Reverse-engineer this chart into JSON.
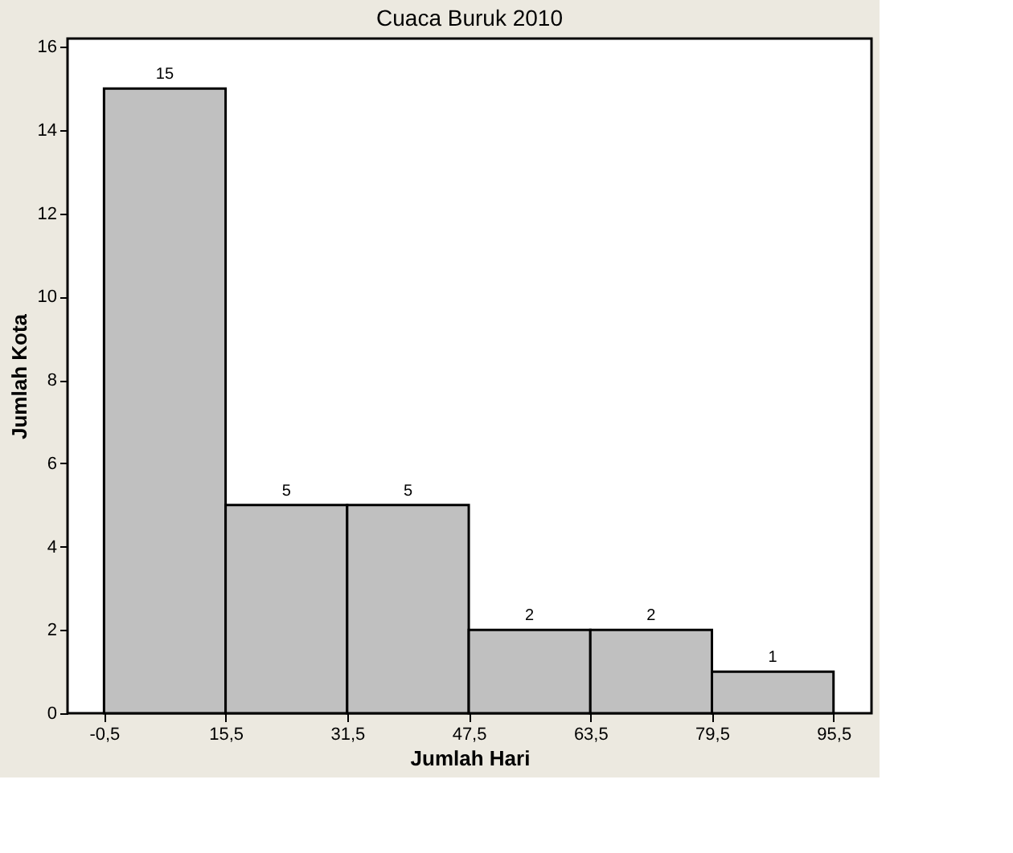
{
  "chart_data": {
    "type": "histogram",
    "title": "Cuaca Buruk 2010",
    "xlabel": "Jumlah Hari",
    "ylabel": "Jumlah Kota",
    "bins": [
      -0.5,
      15.5,
      31.5,
      47.5,
      63.5,
      79.5,
      95.5
    ],
    "values": [
      15,
      5,
      5,
      2,
      2,
      1
    ],
    "color": "#c0c0c0",
    "xlim": [
      -5.3,
      100.5
    ],
    "ylim": [
      0,
      16.2
    ],
    "xticks": [
      {
        "value": -0.5,
        "label": "-0,5"
      },
      {
        "value": 15.5,
        "label": "15,5"
      },
      {
        "value": 31.5,
        "label": "31,5"
      },
      {
        "value": 47.5,
        "label": "47,5"
      },
      {
        "value": 63.5,
        "label": "63,5"
      },
      {
        "value": 79.5,
        "label": "79,5"
      },
      {
        "value": 95.5,
        "label": "95,5"
      }
    ],
    "yticks": [
      0,
      2,
      4,
      6,
      8,
      10,
      12,
      14,
      16
    ],
    "data_labels": true,
    "grid": false
  }
}
